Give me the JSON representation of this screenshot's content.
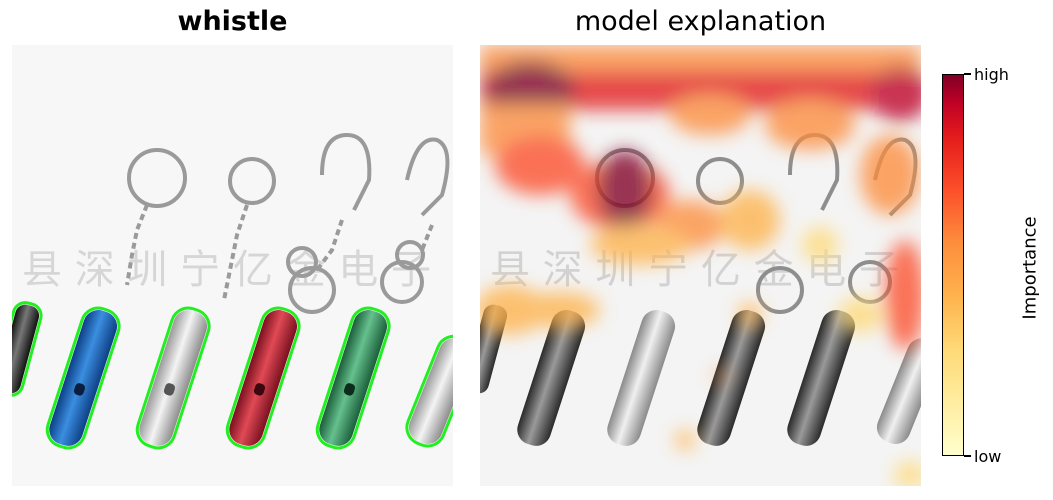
{
  "left_panel": {
    "title": "whistle",
    "outline_color": "#22ee22",
    "whistles": [
      {
        "color": "#1f6fc9",
        "highlighted": true
      },
      {
        "color": "#d8d8d8",
        "highlighted": true
      },
      {
        "color": "#c8283a",
        "highlighted": true
      },
      {
        "color": "#2e9a5c",
        "highlighted": true
      },
      {
        "color": "#e0e0e0",
        "highlighted": true
      }
    ]
  },
  "right_panel": {
    "title": "model explanation",
    "colormap": [
      "#ffffcc",
      "#ffeda0",
      "#fed976",
      "#feb24c",
      "#fd8d3c",
      "#fc4e2a",
      "#e31a1c",
      "#bd0026",
      "#800026"
    ]
  },
  "colorbar": {
    "label": "Importance",
    "high_label": "high",
    "low_label": "low"
  }
}
